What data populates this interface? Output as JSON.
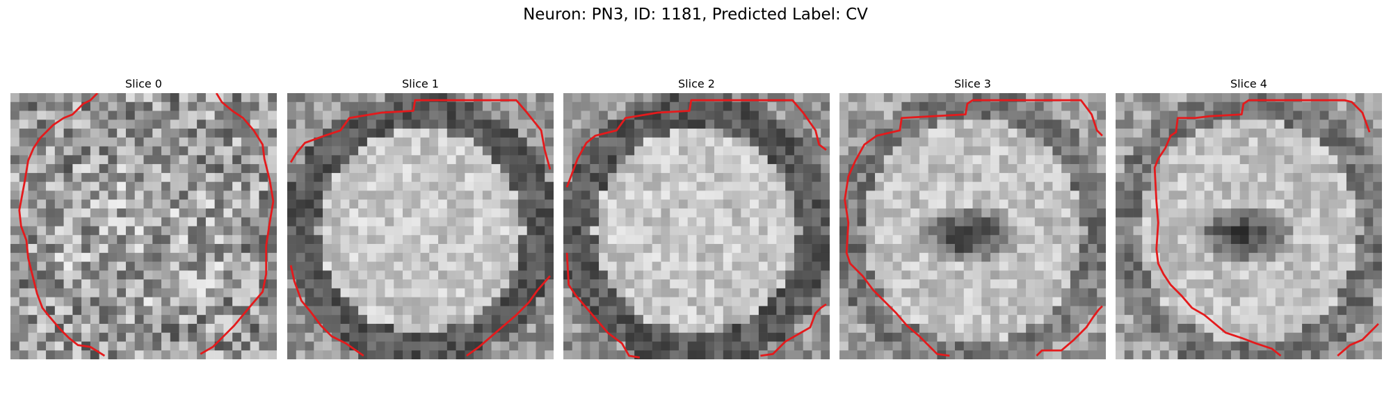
{
  "figure": {
    "title": "Neuron: PN3, ID: 1181, Predicted Label: CV"
  },
  "colors": {
    "contour": "#e41a1c",
    "background": "#ffffff"
  },
  "panels": [
    {
      "title": "Slice 0",
      "pattern": "noisy-disk"
    },
    {
      "title": "Slice 1",
      "pattern": "bright-disk-dark-ring"
    },
    {
      "title": "Slice 2",
      "pattern": "bright-disk-dark-ring"
    },
    {
      "title": "Slice 3",
      "pattern": "dark-center-blob"
    },
    {
      "title": "Slice 4",
      "pattern": "dark-center-blob"
    }
  ]
}
